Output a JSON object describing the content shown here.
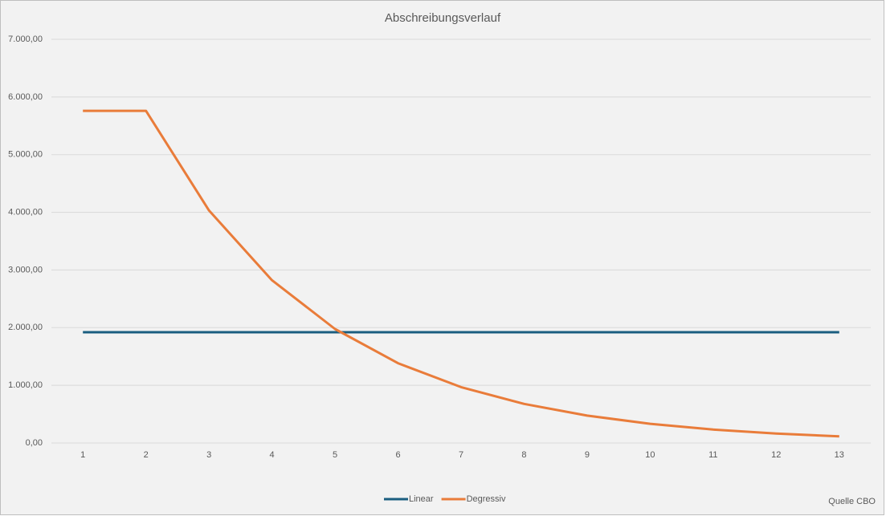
{
  "chart_data": {
    "type": "line",
    "title": "Abschreibungsverlauf",
    "categories": [
      "1",
      "2",
      "3",
      "4",
      "5",
      "6",
      "7",
      "8",
      "9",
      "10",
      "11",
      "12",
      "13"
    ],
    "series": [
      {
        "name": "Linear",
        "color": "#1b5e80",
        "values": [
          1920,
          1920,
          1920,
          1920,
          1920,
          1920,
          1920,
          1920,
          1920,
          1920,
          1920,
          1920,
          1920
        ]
      },
      {
        "name": "Degressiv",
        "color": "#e97c3a",
        "values": [
          5760,
          5760,
          4032,
          2822,
          1976,
          1383,
          968,
          678,
          474,
          332,
          232,
          163,
          114
        ]
      }
    ],
    "ylim": [
      0,
      7000
    ],
    "yticks": [
      {
        "value": 0,
        "label": "0,00"
      },
      {
        "value": 1000,
        "label": "1.000,00"
      },
      {
        "value": 2000,
        "label": "2.000,00"
      },
      {
        "value": 3000,
        "label": "3.000,00"
      },
      {
        "value": 4000,
        "label": "4.000,00"
      },
      {
        "value": 5000,
        "label": "5.000,00"
      },
      {
        "value": 6000,
        "label": "6.000,00"
      },
      {
        "value": 7000,
        "label": "7.000,00"
      }
    ],
    "grid": true,
    "legend": "bottom",
    "annotation": "Quelle CBO"
  }
}
